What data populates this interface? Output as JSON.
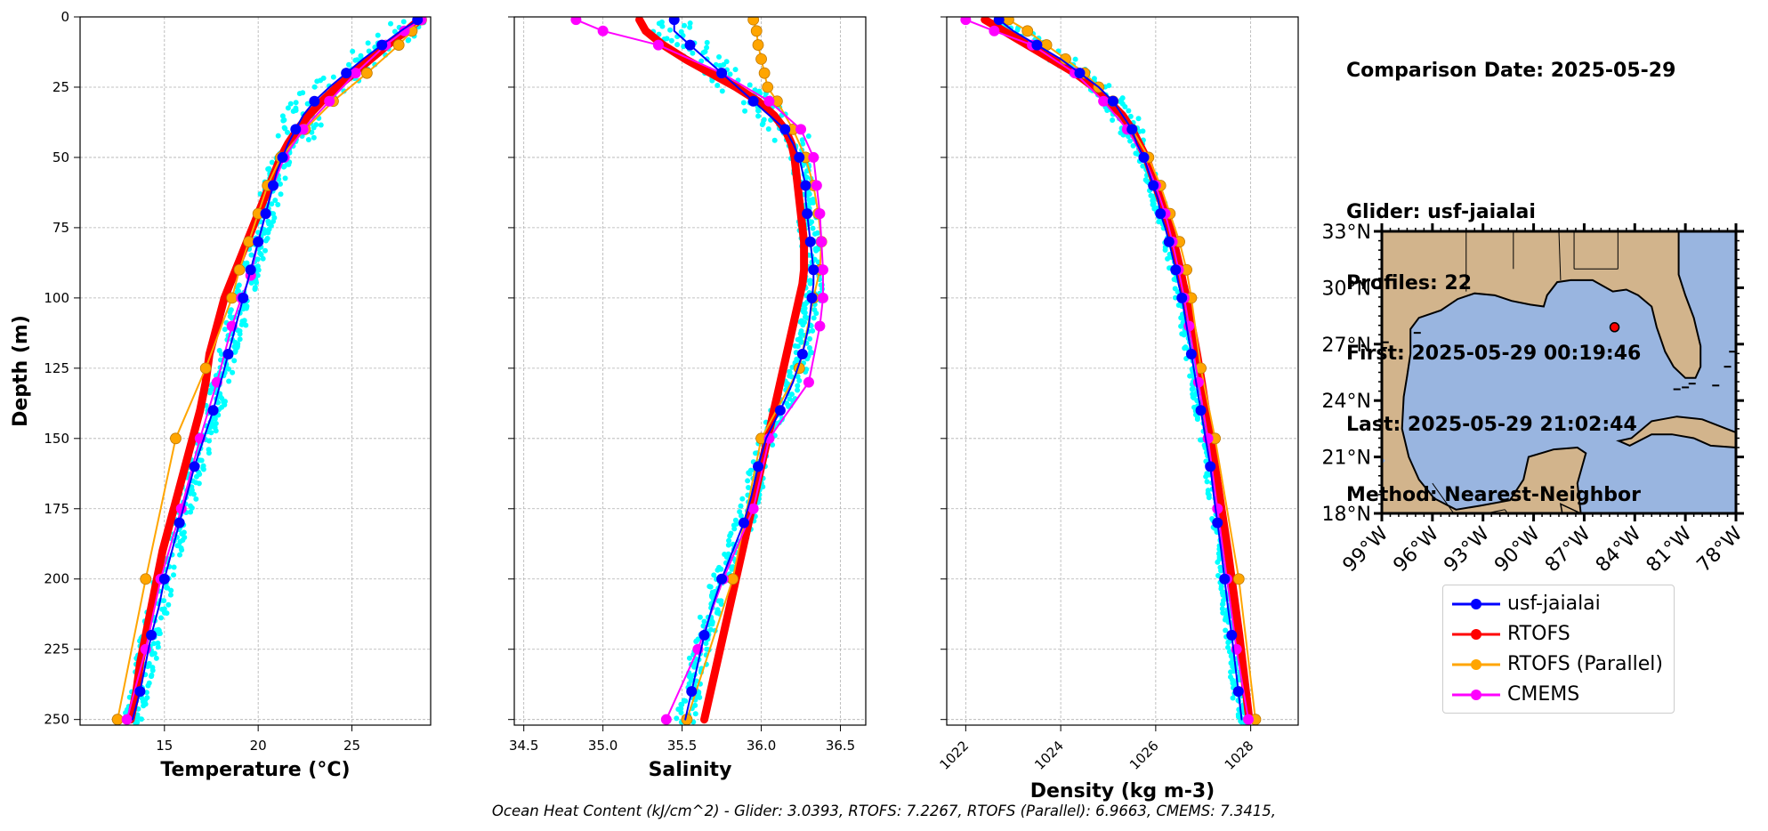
{
  "info": {
    "comparison_date": "Comparison Date: 2025-05-29",
    "glider": "Glider: usf-jaialai",
    "profiles": "Profiles: 22",
    "first": "First: 2025-05-29 00:19:46",
    "last": "Last: 2025-05-29 21:02:44",
    "method": "Method: Nearest-Neighbor"
  },
  "footer": "Ocean Heat Content (kJ/cm^2) - Glider: 3.0393,  RTOFS: 7.2267,  RTOFS (Parallel): 6.9663,  CMEMS: 7.3415,",
  "colors": {
    "glider": "#0000ff",
    "glider_raw": "#00ffff",
    "rtofs": "#ff0000",
    "rtofs_parallel": "#ffa500",
    "cmems": "#ff00ff",
    "land": "#d2b48c",
    "ocean": "#99b5e0"
  },
  "legend": [
    {
      "label": "usf-jaialai",
      "color": "#0000ff"
    },
    {
      "label": "RTOFS",
      "color": "#ff0000"
    },
    {
      "label": "RTOFS (Parallel)",
      "color": "#ffa500"
    },
    {
      "label": "CMEMS",
      "color": "#ff00ff"
    }
  ],
  "chart_data": [
    {
      "type": "line",
      "xlabel": "Temperature (°C)",
      "ylabel": "Depth (m)",
      "xlim": [
        10.5,
        29.2
      ],
      "ylim": [
        252,
        0
      ],
      "xticks": [
        15,
        20,
        25
      ],
      "yticks": [
        0,
        25,
        50,
        75,
        100,
        125,
        150,
        175,
        200,
        225,
        250
      ],
      "grid": true,
      "depth": [
        1,
        5,
        10,
        15,
        20,
        25,
        30,
        35,
        40,
        45,
        50,
        55,
        60,
        65,
        70,
        75,
        80,
        85,
        90,
        95,
        100,
        110,
        120,
        130,
        140,
        150,
        160,
        170,
        180,
        190,
        200,
        210,
        220,
        230,
        240,
        250
      ],
      "series": [
        {
          "name": "usf-jaialai",
          "key": "glider",
          "values": [
            28.5,
            27.6,
            26.6,
            25.6,
            24.7,
            23.8,
            23.0,
            22.4,
            22.0,
            21.6,
            21.3,
            21.0,
            20.8,
            20.6,
            20.4,
            20.2,
            20.0,
            19.8,
            19.6,
            19.4,
            19.2,
            18.8,
            18.4,
            18.0,
            17.6,
            17.1,
            16.6,
            16.2,
            15.8,
            15.4,
            15.0,
            14.7,
            14.3,
            14.0,
            13.7,
            13.3
          ]
        },
        {
          "name": "RTOFS",
          "key": "rtofs",
          "values": [
            28.6,
            27.9,
            26.9,
            26.0,
            25.1,
            24.2,
            23.4,
            22.7,
            22.1,
            21.6,
            21.2,
            20.9,
            20.6,
            20.3,
            20.0,
            19.7,
            19.4,
            19.1,
            18.8,
            18.5,
            18.2,
            17.8,
            17.4,
            17.2,
            16.9,
            16.5,
            16.1,
            15.7,
            15.3,
            14.9,
            14.6,
            14.3,
            14.0,
            13.7,
            13.5,
            13.2
          ]
        },
        {
          "name": "RTOFS (Parallel)",
          "key": "rtofs_parallel",
          "depth": [
            1,
            5,
            10,
            20,
            30,
            40,
            50,
            60,
            70,
            80,
            90,
            100,
            125,
            150,
            200,
            250
          ],
          "values": [
            28.7,
            28.2,
            27.5,
            25.8,
            24.0,
            22.5,
            21.2,
            20.5,
            20.0,
            19.5,
            19.0,
            18.6,
            17.2,
            15.6,
            14.0,
            12.5
          ]
        },
        {
          "name": "CMEMS",
          "key": "cmems",
          "depth": [
            1,
            5,
            10,
            20,
            30,
            40,
            50,
            60,
            70,
            80,
            92,
            100,
            110,
            130,
            150,
            175,
            200,
            225,
            250
          ],
          "values": [
            28.7,
            27.8,
            26.8,
            25.2,
            23.8,
            22.4,
            21.4,
            20.8,
            20.4,
            20.0,
            19.6,
            19.1,
            18.6,
            17.8,
            16.9,
            15.9,
            14.8,
            14.0,
            13.0
          ]
        }
      ]
    },
    {
      "type": "line",
      "xlabel": "Salinity",
      "xlim": [
        34.44,
        36.66
      ],
      "ylim": [
        252,
        0
      ],
      "xticks": [
        34.5,
        35.0,
        35.5,
        36.0,
        36.5
      ],
      "yticks": [
        0,
        25,
        50,
        75,
        100,
        125,
        150,
        175,
        200,
        225,
        250
      ],
      "grid": true,
      "depth": [
        1,
        5,
        10,
        15,
        20,
        25,
        30,
        35,
        40,
        45,
        50,
        55,
        60,
        65,
        70,
        75,
        80,
        85,
        90,
        95,
        100,
        110,
        120,
        130,
        140,
        150,
        160,
        170,
        180,
        190,
        200,
        210,
        220,
        230,
        240,
        250
      ],
      "series": [
        {
          "name": "usf-jaialai",
          "key": "glider",
          "values": [
            35.45,
            35.45,
            35.55,
            35.65,
            35.75,
            35.85,
            35.95,
            36.05,
            36.15,
            36.2,
            36.24,
            36.26,
            36.28,
            36.28,
            36.29,
            36.3,
            36.31,
            36.32,
            36.33,
            36.33,
            36.32,
            36.3,
            36.26,
            36.2,
            36.12,
            36.03,
            35.98,
            35.94,
            35.89,
            35.82,
            35.75,
            35.69,
            35.64,
            35.6,
            35.56,
            35.52
          ]
        },
        {
          "name": "RTOFS",
          "key": "rtofs",
          "values": [
            35.23,
            35.27,
            35.38,
            35.52,
            35.68,
            35.84,
            35.98,
            36.08,
            36.15,
            36.19,
            36.21,
            36.22,
            36.23,
            36.24,
            36.25,
            36.26,
            36.27,
            36.27,
            36.27,
            36.26,
            36.24,
            36.2,
            36.16,
            36.12,
            36.08,
            36.04,
            36.0,
            35.96,
            35.92,
            35.88,
            35.84,
            35.8,
            35.76,
            35.72,
            35.68,
            35.64
          ]
        },
        {
          "name": "RTOFS (Parallel)",
          "key": "rtofs_parallel",
          "depth": [
            1,
            5,
            10,
            15,
            20,
            25,
            30,
            40,
            50,
            60,
            70,
            80,
            90,
            100,
            125,
            150,
            200,
            250
          ],
          "values": [
            35.95,
            35.97,
            35.98,
            36.0,
            36.02,
            36.04,
            36.1,
            36.2,
            36.28,
            36.33,
            36.36,
            36.38,
            36.37,
            36.33,
            36.24,
            36.0,
            35.82,
            35.53
          ]
        },
        {
          "name": "CMEMS",
          "key": "cmems",
          "depth": [
            1,
            5,
            10,
            20,
            30,
            40,
            50,
            60,
            70,
            80,
            90,
            100,
            110,
            130,
            150,
            175,
            200,
            225,
            250
          ],
          "values": [
            34.83,
            35.0,
            35.35,
            35.75,
            36.05,
            36.25,
            36.33,
            36.35,
            36.37,
            36.38,
            36.39,
            36.39,
            36.37,
            36.3,
            36.05,
            35.95,
            35.76,
            35.6,
            35.4
          ]
        }
      ]
    },
    {
      "type": "line",
      "xlabel": "Density (kg m-3)",
      "xlim": [
        1021.6,
        1029.0
      ],
      "ylim": [
        252,
        0
      ],
      "xticks": [
        1022,
        1024,
        1026,
        1028
      ],
      "yticks": [
        0,
        25,
        50,
        75,
        100,
        125,
        150,
        175,
        200,
        225,
        250
      ],
      "grid": true,
      "depth": [
        1,
        5,
        10,
        15,
        20,
        25,
        30,
        35,
        40,
        45,
        50,
        55,
        60,
        65,
        70,
        75,
        80,
        85,
        90,
        95,
        100,
        110,
        120,
        130,
        140,
        150,
        160,
        170,
        180,
        190,
        200,
        210,
        220,
        230,
        240,
        250
      ],
      "series": [
        {
          "name": "usf-jaialai",
          "key": "glider",
          "values": [
            1022.7,
            1023.0,
            1023.5,
            1024.0,
            1024.4,
            1024.8,
            1025.1,
            1025.3,
            1025.5,
            1025.6,
            1025.75,
            1025.85,
            1025.95,
            1026.05,
            1026.1,
            1026.2,
            1026.28,
            1026.35,
            1026.42,
            1026.48,
            1026.55,
            1026.65,
            1026.75,
            1026.85,
            1026.95,
            1027.05,
            1027.15,
            1027.22,
            1027.3,
            1027.38,
            1027.45,
            1027.52,
            1027.6,
            1027.67,
            1027.74,
            1027.81
          ]
        },
        {
          "name": "RTOFS",
          "key": "rtofs",
          "values": [
            1022.4,
            1022.8,
            1023.3,
            1023.8,
            1024.3,
            1024.7,
            1025.0,
            1025.3,
            1025.5,
            1025.65,
            1025.8,
            1025.9,
            1026.0,
            1026.1,
            1026.2,
            1026.3,
            1026.38,
            1026.45,
            1026.52,
            1026.58,
            1026.65,
            1026.76,
            1026.87,
            1026.97,
            1027.06,
            1027.16,
            1027.25,
            1027.34,
            1027.43,
            1027.52,
            1027.6,
            1027.68,
            1027.76,
            1027.83,
            1027.9,
            1027.97
          ]
        },
        {
          "name": "RTOFS (Parallel)",
          "key": "rtofs_parallel",
          "depth": [
            1,
            5,
            10,
            15,
            20,
            25,
            30,
            40,
            50,
            60,
            70,
            80,
            90,
            100,
            125,
            150,
            200,
            250
          ],
          "values": [
            1022.9,
            1023.3,
            1023.7,
            1024.1,
            1024.5,
            1024.8,
            1025.1,
            1025.5,
            1025.85,
            1026.1,
            1026.3,
            1026.5,
            1026.65,
            1026.75,
            1026.95,
            1027.25,
            1027.75,
            1028.1
          ]
        },
        {
          "name": "CMEMS",
          "key": "cmems",
          "depth": [
            1,
            5,
            10,
            20,
            30,
            40,
            50,
            60,
            70,
            80,
            90,
            100,
            110,
            130,
            150,
            175,
            200,
            225,
            250
          ],
          "values": [
            1022.0,
            1022.6,
            1023.4,
            1024.3,
            1024.9,
            1025.4,
            1025.75,
            1026.0,
            1026.2,
            1026.35,
            1026.48,
            1026.6,
            1026.7,
            1026.9,
            1027.1,
            1027.3,
            1027.5,
            1027.7,
            1027.95
          ]
        }
      ]
    }
  ],
  "map": {
    "lat_range": [
      18,
      33
    ],
    "lon_range": [
      -99,
      -78
    ],
    "lat_ticks": [
      "18°N",
      "21°N",
      "24°N",
      "27°N",
      "30°N",
      "33°N"
    ],
    "lon_ticks": [
      "99°W",
      "96°W",
      "93°W",
      "90°W",
      "87°W",
      "84°W",
      "81°W",
      "78°W"
    ],
    "marker": {
      "lon": -85.2,
      "lat": 27.9
    }
  }
}
